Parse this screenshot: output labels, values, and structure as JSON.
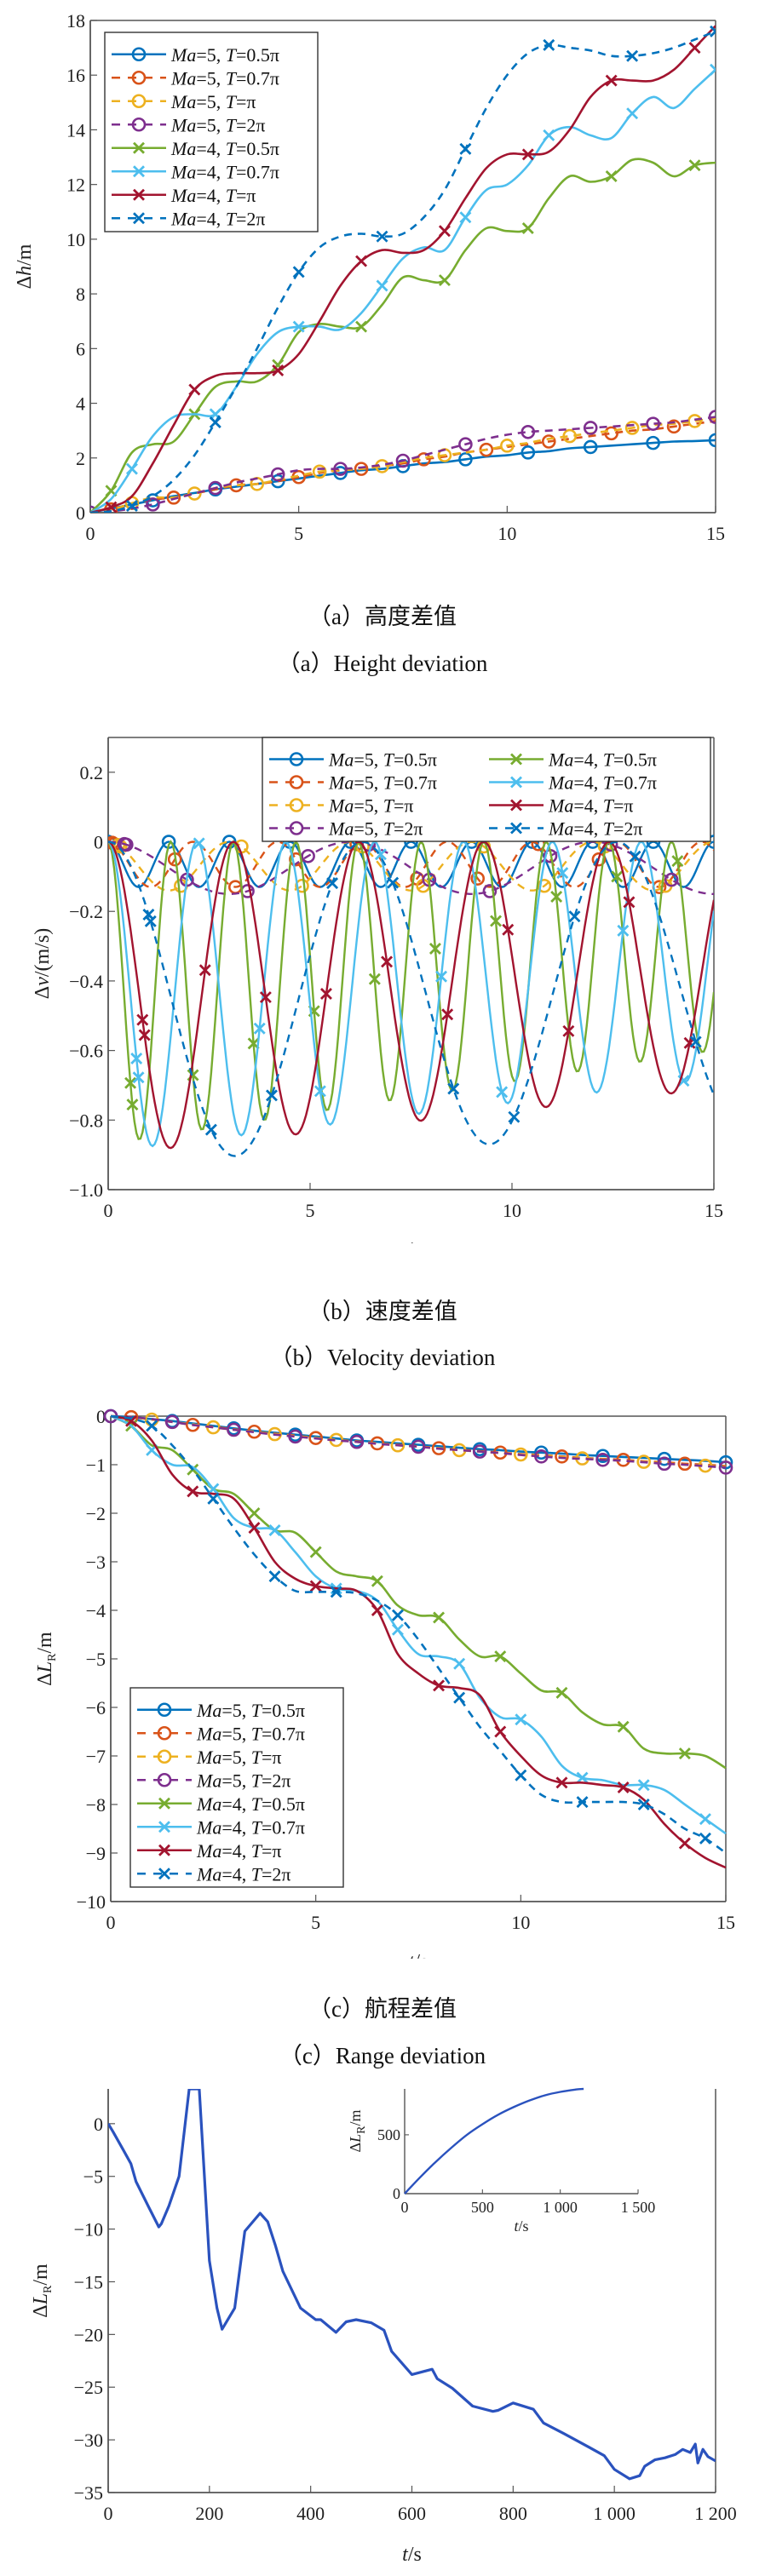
{
  "captions": {
    "a_cn": "（a）高度差值",
    "a_en": "（a）Height deviation",
    "b_cn": "（b）速度差值",
    "b_en": "（b）Velocity deviation",
    "c_cn": "（c）航程差值",
    "c_en": "（c）Range deviation"
  },
  "series_styles": [
    {
      "name": "Ma=5, T=0.5π",
      "ma": "5",
      "t": "0.5π",
      "color": "#0072BD",
      "dash": "solid",
      "marker": "circle"
    },
    {
      "name": "Ma=5, T=0.7π",
      "ma": "5",
      "t": "0.7π",
      "color": "#D95319",
      "dash": "dashed",
      "marker": "circle"
    },
    {
      "name": "Ma=5, T=π",
      "ma": "5",
      "t": "π",
      "color": "#EDB120",
      "dash": "dashed",
      "marker": "circle"
    },
    {
      "name": "Ma=5, T=2π",
      "ma": "5",
      "t": "2π",
      "color": "#7E2F8E",
      "dash": "dashed",
      "marker": "circle"
    },
    {
      "name": "Ma=4, T=0.5π",
      "ma": "4",
      "t": "0.5π",
      "color": "#77AC30",
      "dash": "solid",
      "marker": "x"
    },
    {
      "name": "Ma=4, T=0.7π",
      "ma": "4",
      "t": "0.7π",
      "color": "#4DBEEE",
      "dash": "solid",
      "marker": "x"
    },
    {
      "name": "Ma=4, T=π",
      "ma": "4",
      "t": "π",
      "color": "#A2142F",
      "dash": "solid",
      "marker": "x"
    },
    {
      "name": "Ma=4, T=2π",
      "ma": "4",
      "t": "2π",
      "color": "#0072BD",
      "dash": "dashed",
      "marker": "x"
    }
  ],
  "chart_data": [
    {
      "id": "a",
      "type": "line",
      "title": "Height deviation",
      "xlabel": "t/s",
      "ylabel": "Δh/m",
      "xlim": [
        0,
        15
      ],
      "ylim": [
        0,
        18
      ],
      "xticks": [
        0,
        5,
        10,
        15
      ],
      "yticks": [
        0,
        2,
        4,
        6,
        8,
        10,
        12,
        14,
        16,
        18
      ],
      "legend": "top-left",
      "legend_columns": 1,
      "x": [
        0,
        0.5,
        1,
        1.5,
        2,
        2.5,
        3,
        3.5,
        4,
        4.5,
        5,
        5.5,
        6,
        6.5,
        7,
        7.5,
        8,
        8.5,
        9,
        9.5,
        10,
        10.5,
        11,
        11.5,
        12,
        12.5,
        13,
        13.5,
        14,
        14.5,
        15
      ],
      "series": [
        {
          "name": "Ma=5, T=0.5π",
          "values": [
            0,
            0.15,
            0.3,
            0.45,
            0.6,
            0.72,
            0.85,
            0.95,
            1.05,
            1.15,
            1.25,
            1.35,
            1.45,
            1.55,
            1.6,
            1.7,
            1.8,
            1.85,
            1.95,
            2.05,
            2.1,
            2.2,
            2.25,
            2.35,
            2.4,
            2.45,
            2.5,
            2.55,
            2.6,
            2.62,
            2.65
          ]
        },
        {
          "name": "Ma=5, T=0.7π",
          "values": [
            0,
            0.12,
            0.3,
            0.48,
            0.55,
            0.7,
            0.85,
            1.0,
            1.05,
            1.15,
            1.3,
            1.45,
            1.55,
            1.6,
            1.7,
            1.8,
            1.95,
            2.05,
            2.2,
            2.3,
            2.4,
            2.5,
            2.6,
            2.7,
            2.8,
            2.9,
            3.0,
            3.05,
            3.15,
            3.25,
            3.35
          ]
        },
        {
          "name": "Ma=5, T=π",
          "values": [
            0,
            0.1,
            0.35,
            0.55,
            0.55,
            0.7,
            0.9,
            1.0,
            1.05,
            1.2,
            1.35,
            1.5,
            1.55,
            1.6,
            1.7,
            1.85,
            2.0,
            2.1,
            2.2,
            2.3,
            2.45,
            2.55,
            2.7,
            2.8,
            2.9,
            3.0,
            3.1,
            3.2,
            3.25,
            3.35,
            3.45
          ]
        },
        {
          "name": "Ma=5, T=2π",
          "values": [
            0,
            0.05,
            0.15,
            0.3,
            0.5,
            0.7,
            0.9,
            1.1,
            1.25,
            1.4,
            1.55,
            1.6,
            1.6,
            1.65,
            1.75,
            1.9,
            2.1,
            2.3,
            2.5,
            2.7,
            2.85,
            2.95,
            3.0,
            3.05,
            3.1,
            3.15,
            3.2,
            3.25,
            3.3,
            3.4,
            3.5
          ]
        },
        {
          "name": "Ma=4, T=0.5π",
          "values": [
            0,
            0.8,
            2.2,
            2.5,
            2.6,
            3.6,
            4.6,
            4.8,
            4.8,
            5.4,
            6.6,
            6.9,
            6.8,
            6.8,
            7.6,
            8.6,
            8.5,
            8.5,
            9.6,
            10.4,
            10.3,
            10.4,
            11.5,
            12.3,
            12.1,
            12.3,
            12.9,
            12.8,
            12.3,
            12.7,
            12.8
          ]
        },
        {
          "name": "Ma=4, T=0.7π",
          "values": [
            0,
            0.5,
            1.6,
            2.8,
            3.5,
            3.6,
            3.6,
            4.6,
            5.8,
            6.6,
            6.8,
            6.8,
            6.7,
            7.3,
            8.3,
            9.3,
            9.7,
            9.6,
            10.8,
            11.8,
            12.0,
            12.7,
            13.8,
            14.1,
            13.8,
            13.7,
            14.6,
            15.2,
            14.8,
            15.5,
            16.2
          ]
        },
        {
          "name": "Ma=4, T=π",
          "values": [
            0,
            0.2,
            0.6,
            1.8,
            3.2,
            4.5,
            5.0,
            5.1,
            5.1,
            5.2,
            5.8,
            7.0,
            8.3,
            9.2,
            9.6,
            9.5,
            9.6,
            10.3,
            11.5,
            12.6,
            13.1,
            13.1,
            13.2,
            14.0,
            15.2,
            15.8,
            15.8,
            15.8,
            16.2,
            17.0,
            17.8
          ]
        },
        {
          "name": "Ma=4, T=2π",
          "values": [
            0,
            0.05,
            0.25,
            0.6,
            1.2,
            2.1,
            3.3,
            4.6,
            6.0,
            7.5,
            8.8,
            9.7,
            10.1,
            10.2,
            10.1,
            10.2,
            10.8,
            11.8,
            13.3,
            14.8,
            16.0,
            16.8,
            17.1,
            17.0,
            16.9,
            16.7,
            16.7,
            16.8,
            17.0,
            17.3,
            17.6
          ]
        }
      ]
    },
    {
      "id": "b",
      "type": "line",
      "title": "Velocity deviation",
      "xlabel": "t/s",
      "ylabel": "Δv/(m/s)",
      "xlim": [
        0,
        15
      ],
      "ylim": [
        -1.0,
        0.3
      ],
      "xticks": [
        0,
        5,
        10,
        15
      ],
      "yticks": [
        -1.0,
        -0.8,
        -0.6,
        -0.4,
        -0.2,
        0,
        0.2
      ],
      "legend": "top-right",
      "legend_columns": 2,
      "series_params": [
        {
          "name": "Ma=5, T=0.5π",
          "period_s": 1.5,
          "min": -0.13
        },
        {
          "name": "Ma=5, T=0.7π",
          "period_s": 2.1,
          "min": -0.13
        },
        {
          "name": "Ma=5, T=π",
          "period_s": 3.0,
          "min": -0.14
        },
        {
          "name": "Ma=5, T=2π",
          "period_s": 6.0,
          "min": -0.15
        },
        {
          "name": "Ma=4, T=0.5π",
          "period_s": 1.55,
          "min": -0.87,
          "min_end": -0.6
        },
        {
          "name": "Ma=4, T=0.7π",
          "period_s": 2.2,
          "min": -0.89,
          "min_end": -0.68
        },
        {
          "name": "Ma=4, T=π",
          "period_s": 3.1,
          "min": -0.9,
          "min_end": -0.71
        },
        {
          "name": "Ma=4, T=2π",
          "period_s": 6.3,
          "min": -0.92,
          "min_end": -0.84
        }
      ]
    },
    {
      "id": "c",
      "type": "line",
      "title": "Range deviation",
      "xlabel": "t/s",
      "ylabel": "ΔL_R/m",
      "xlim": [
        0,
        15
      ],
      "ylim": [
        -10,
        0
      ],
      "xticks": [
        0,
        5,
        10,
        15
      ],
      "yticks": [
        -10,
        -9,
        -8,
        -7,
        -6,
        -5,
        -4,
        -3,
        -2,
        -1,
        0
      ],
      "legend": "bottom-left",
      "legend_columns": 1,
      "x": [
        0,
        0.5,
        1,
        1.5,
        2,
        2.5,
        3,
        3.5,
        4,
        4.5,
        5,
        5.5,
        6,
        6.5,
        7,
        7.5,
        8,
        8.5,
        9,
        9.5,
        10,
        10.5,
        11,
        11.5,
        12,
        12.5,
        13,
        13.5,
        14,
        14.5,
        15
      ],
      "series": [
        {
          "name": "Ma=5, T=0.5π",
          "values": [
            0,
            -0.02,
            -0.06,
            -0.1,
            -0.15,
            -0.2,
            -0.25,
            -0.3,
            -0.34,
            -0.38,
            -0.42,
            -0.46,
            -0.5,
            -0.53,
            -0.56,
            -0.59,
            -0.62,
            -0.65,
            -0.68,
            -0.7,
            -0.73,
            -0.75,
            -0.77,
            -0.8,
            -0.82,
            -0.84,
            -0.86,
            -0.88,
            -0.9,
            -0.92,
            -0.95
          ]
        },
        {
          "name": "Ma=5, T=0.7π",
          "values": [
            0,
            -0.02,
            -0.07,
            -0.12,
            -0.18,
            -0.22,
            -0.27,
            -0.32,
            -0.36,
            -0.4,
            -0.45,
            -0.49,
            -0.52,
            -0.56,
            -0.59,
            -0.62,
            -0.66,
            -0.69,
            -0.72,
            -0.75,
            -0.78,
            -0.8,
            -0.83,
            -0.86,
            -0.88,
            -0.9,
            -0.93,
            -0.95,
            -0.98,
            -1.0,
            -1.03
          ]
        },
        {
          "name": "Ma=5, T=π",
          "values": [
            0,
            -0.02,
            -0.07,
            -0.12,
            -0.17,
            -0.23,
            -0.28,
            -0.32,
            -0.37,
            -0.41,
            -0.45,
            -0.49,
            -0.53,
            -0.56,
            -0.6,
            -0.63,
            -0.66,
            -0.7,
            -0.73,
            -0.76,
            -0.79,
            -0.81,
            -0.84,
            -0.87,
            -0.89,
            -0.92,
            -0.94,
            -0.97,
            -1.0,
            -1.02,
            -1.05
          ]
        },
        {
          "name": "Ma=5, T=2π",
          "values": [
            0,
            -0.02,
            -0.06,
            -0.12,
            -0.18,
            -0.23,
            -0.28,
            -0.33,
            -0.38,
            -0.42,
            -0.46,
            -0.5,
            -0.53,
            -0.57,
            -0.6,
            -0.63,
            -0.67,
            -0.7,
            -0.73,
            -0.76,
            -0.8,
            -0.83,
            -0.86,
            -0.88,
            -0.9,
            -0.92,
            -0.95,
            -0.98,
            -1.0,
            -1.03,
            -1.06
          ]
        },
        {
          "name": "Ma=4, T=0.5π",
          "values": [
            0,
            -0.2,
            -0.6,
            -0.7,
            -1.1,
            -1.5,
            -1.6,
            -2.0,
            -2.35,
            -2.4,
            -2.8,
            -3.2,
            -3.3,
            -3.4,
            -3.9,
            -4.1,
            -4.15,
            -4.6,
            -4.95,
            -4.95,
            -5.3,
            -5.65,
            -5.7,
            -6.1,
            -6.35,
            -6.4,
            -6.85,
            -6.95,
            -6.95,
            -7.0,
            -7.25
          ]
        },
        {
          "name": "Ma=4, T=0.7π",
          "values": [
            0,
            -0.2,
            -0.7,
            -1.0,
            -1.05,
            -1.5,
            -2.1,
            -2.3,
            -2.35,
            -2.8,
            -3.3,
            -3.55,
            -3.6,
            -3.8,
            -4.4,
            -4.9,
            -4.95,
            -5.1,
            -5.8,
            -6.2,
            -6.25,
            -6.6,
            -7.2,
            -7.45,
            -7.5,
            -7.6,
            -7.6,
            -7.7,
            -8.0,
            -8.3,
            -8.6
          ]
        },
        {
          "name": "Ma=4, T=π",
          "values": [
            0,
            -0.1,
            -0.5,
            -1.2,
            -1.55,
            -1.6,
            -1.7,
            -2.3,
            -3.0,
            -3.35,
            -3.5,
            -3.55,
            -3.6,
            -4.0,
            -4.9,
            -5.3,
            -5.55,
            -5.6,
            -5.75,
            -6.5,
            -7.0,
            -7.4,
            -7.55,
            -7.55,
            -7.6,
            -7.65,
            -7.9,
            -8.4,
            -8.8,
            -9.1,
            -9.3
          ]
        },
        {
          "name": "Ma=4, T=2π",
          "values": [
            0,
            -0.05,
            -0.2,
            -0.6,
            -1.1,
            -1.7,
            -2.3,
            -2.85,
            -3.3,
            -3.6,
            -3.62,
            -3.62,
            -3.65,
            -3.8,
            -4.1,
            -4.6,
            -5.2,
            -5.8,
            -6.4,
            -6.9,
            -7.4,
            -7.8,
            -7.95,
            -7.95,
            -7.95,
            -7.95,
            -8.0,
            -8.2,
            -8.5,
            -8.7,
            -9.0
          ]
        }
      ]
    },
    {
      "id": "d",
      "type": "line",
      "title": "",
      "xlabel": "t/s",
      "ylabel": "ΔL_R/m",
      "xlim": [
        0,
        1200
      ],
      "ylim": [
        -35,
        3.3
      ],
      "xticks": [
        0,
        200,
        400,
        600,
        800,
        1000,
        1200
      ],
      "xtick_labels": [
        "0",
        "200",
        "400",
        "600",
        "800",
        "1 000",
        "1 200"
      ],
      "yticks": [
        -35,
        -30,
        -25,
        -20,
        -15,
        -10,
        -5,
        0
      ],
      "legend": "none",
      "color": "#2A52BE",
      "x": [
        0,
        10,
        30,
        45,
        55,
        80,
        100,
        105,
        120,
        140,
        160,
        180,
        200,
        215,
        225,
        250,
        270,
        300,
        315,
        330,
        345,
        380,
        410,
        420,
        435,
        450,
        470,
        490,
        520,
        545,
        560,
        600,
        640,
        650,
        680,
        720,
        760,
        770,
        800,
        840,
        860,
        900,
        950,
        980,
        1000,
        1030,
        1050,
        1060,
        1080,
        1100,
        1120,
        1135,
        1150,
        1160,
        1165,
        1175,
        1185,
        1200
      ],
      "values": [
        0,
        -0.8,
        -2.5,
        -3.8,
        -5.5,
        -7.9,
        -9.8,
        -9.5,
        -7.8,
        -5.0,
        3.3,
        3.3,
        -13,
        -17.5,
        -19.5,
        -17.5,
        -10.2,
        -8.5,
        -9.3,
        -11.5,
        -14,
        -17.5,
        -18.6,
        -18.6,
        -19.2,
        -19.8,
        -18.8,
        -18.6,
        -18.9,
        -19.6,
        -21.6,
        -23.8,
        -23.3,
        -24.2,
        -25.1,
        -26.8,
        -27.3,
        -27.2,
        -26.5,
        -27.1,
        -28.4,
        -29.4,
        -30.7,
        -31.5,
        -32.8,
        -33.7,
        -33.4,
        -32.5,
        -31.9,
        -31.7,
        -31.4,
        -30.9,
        -31.2,
        -30.4,
        -32.2,
        -30.9,
        -31.6,
        -32.0
      ],
      "inset": {
        "xlabel": "t/s",
        "ylabel": "ΔL_R/m",
        "xlim": [
          0,
          1500
        ],
        "ylim": [
          0,
          890
        ],
        "xticks": [
          0,
          500,
          1000,
          1500
        ],
        "xtick_labels": [
          "0",
          "500",
          "1 000",
          "1 500"
        ],
        "yticks": [
          0,
          500
        ],
        "x": [
          0,
          100,
          200,
          300,
          400,
          500,
          600,
          700,
          800,
          900,
          1000,
          1100,
          1150
        ],
        "values": [
          0,
          140,
          270,
          390,
          500,
          590,
          670,
          735,
          790,
          835,
          865,
          885,
          890
        ]
      }
    }
  ]
}
